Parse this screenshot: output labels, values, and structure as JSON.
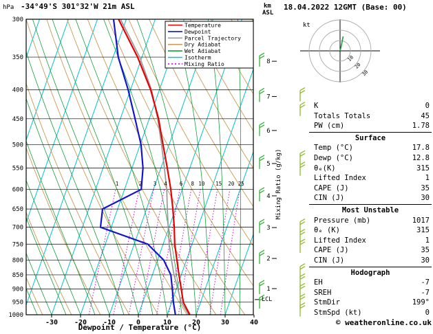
{
  "header": {
    "title": "-34°49'S 301°32'W 21m ASL",
    "date": "18.04.2022 12GMT (Base: 00)",
    "pressure_unit": "hPa",
    "alt_unit_line1": "km",
    "alt_unit_line2": "ASL"
  },
  "axes": {
    "pressure_ticks": [
      300,
      350,
      400,
      450,
      500,
      550,
      600,
      650,
      700,
      750,
      800,
      850,
      900,
      950,
      1000
    ],
    "temp_ticks": [
      -30,
      -20,
      -10,
      0,
      10,
      20,
      30,
      40
    ],
    "km_ticks": [
      1,
      2,
      3,
      4,
      5,
      6,
      7,
      8
    ],
    "xlabel": "Dewpoint / Temperature (°C)",
    "mixing_label": "Mixing Ratio (g/kg)",
    "lcl_label": "LCL"
  },
  "legend": [
    {
      "label": "Temperature",
      "color": "#e60000",
      "dash": ""
    },
    {
      "label": "Dewpoint",
      "color": "#1414cd",
      "dash": ""
    },
    {
      "label": "Parcel Trajectory",
      "color": "#9c9c9c",
      "dash": ""
    },
    {
      "label": "Dry Adiabat",
      "color": "#c89b50",
      "dash": ""
    },
    {
      "label": "Wet Adiabat",
      "color": "#14a03c",
      "dash": ""
    },
    {
      "label": "Isotherm",
      "color": "#00c3cd",
      "dash": ""
    },
    {
      "label": "Mixing Ratio",
      "color": "#dc00dc",
      "dash": "2 3"
    }
  ],
  "chart_data": {
    "type": "skewt-log-p",
    "pressure_range": [
      300,
      1000
    ],
    "surface_temp_range": [
      -40,
      40
    ],
    "pressure_levels": [
      1000,
      950,
      900,
      850,
      800,
      750,
      700,
      650,
      600,
      550,
      500,
      450,
      400,
      350,
      300
    ],
    "temperature_c": [
      17.8,
      14.0,
      11.7,
      9.2,
      6.7,
      4.0,
      1.8,
      -0.9,
      -4.0,
      -7.8,
      -12.1,
      -16.8,
      -23.0,
      -31.5,
      -42.7
    ],
    "dewpoint_c": [
      12.8,
      10.6,
      8.6,
      6.4,
      2.1,
      -5.3,
      -23.7,
      -25.2,
      -14.2,
      -16.2,
      -19.7,
      -24.9,
      -30.8,
      -38.2,
      -44.4
    ],
    "parcel_c": [
      17.4,
      13.3,
      10.5,
      7.5,
      4.8,
      2.1,
      -0.3,
      -2.8,
      -5.4,
      -8.8,
      -12.6,
      -17.1,
      -22.7,
      -30.8,
      -42.0
    ],
    "mixing_ratio_lines": [
      1,
      2,
      3,
      4,
      6,
      8,
      10,
      15,
      20,
      25
    ],
    "lcl_pressure": 940,
    "wind_barbs_km": [
      0.5,
      1,
      2,
      3,
      4,
      5,
      6,
      7,
      8
    ],
    "wind_profile_pressures": [
      410,
      435,
      530,
      555,
      700,
      730,
      760,
      840,
      875,
      910,
      950,
      985
    ],
    "colors": {
      "temperature": "#e60000",
      "dewpoint": "#1414cd",
      "parcel": "#9c9c9c",
      "dry_adiabat": "#c89b50",
      "wet_adiabat": "#14a03c",
      "isotherm": "#00c3cd",
      "mixing_ratio": "#dc00dc",
      "wind_edge": "#2eb82e",
      "wind_profile": "#8fb92e",
      "grid": "#000000"
    }
  },
  "hodograph": {
    "unit": "kt",
    "rings_kt": [
      10,
      20,
      30
    ],
    "ring_labels": [
      "10",
      "20",
      "30"
    ],
    "trace_uv_kt": [
      [
        0,
        0
      ],
      [
        1,
        4
      ],
      [
        2,
        9
      ],
      [
        3,
        14
      ]
    ],
    "trace_color": "#14a03c"
  },
  "table": {
    "sections": [
      {
        "header": "",
        "rows": [
          {
            "label": "K",
            "value": "0"
          },
          {
            "label": "Totals Totals",
            "value": "45"
          },
          {
            "label": "PW (cm)",
            "value": "1.78"
          }
        ]
      },
      {
        "header": "Surface",
        "rows": [
          {
            "label": "Temp (°C)",
            "value": "17.8"
          },
          {
            "label": "Dewp (°C)",
            "value": "12.8"
          },
          {
            "label": "θₑ(K)",
            "value": "315"
          },
          {
            "label": "Lifted Index",
            "value": "1"
          },
          {
            "label": "CAPE (J)",
            "value": "35"
          },
          {
            "label": "CIN (J)",
            "value": "30"
          }
        ]
      },
      {
        "header": "Most Unstable",
        "rows": [
          {
            "label": "Pressure (mb)",
            "value": "1017"
          },
          {
            "label": "θₑ (K)",
            "value": "315"
          },
          {
            "label": "Lifted Index",
            "value": "1"
          },
          {
            "label": "CAPE (J)",
            "value": "35"
          },
          {
            "label": "CIN (J)",
            "value": "30"
          }
        ]
      },
      {
        "header": "Hodograph",
        "rows": [
          {
            "label": "EH",
            "value": "-7"
          },
          {
            "label": "SREH",
            "value": "-7"
          },
          {
            "label": "StmDir",
            "value": "199°"
          },
          {
            "label": "StmSpd (kt)",
            "value": "0"
          }
        ]
      }
    ]
  },
  "footer": {
    "copyright": "© weatheronline.co.uk"
  }
}
